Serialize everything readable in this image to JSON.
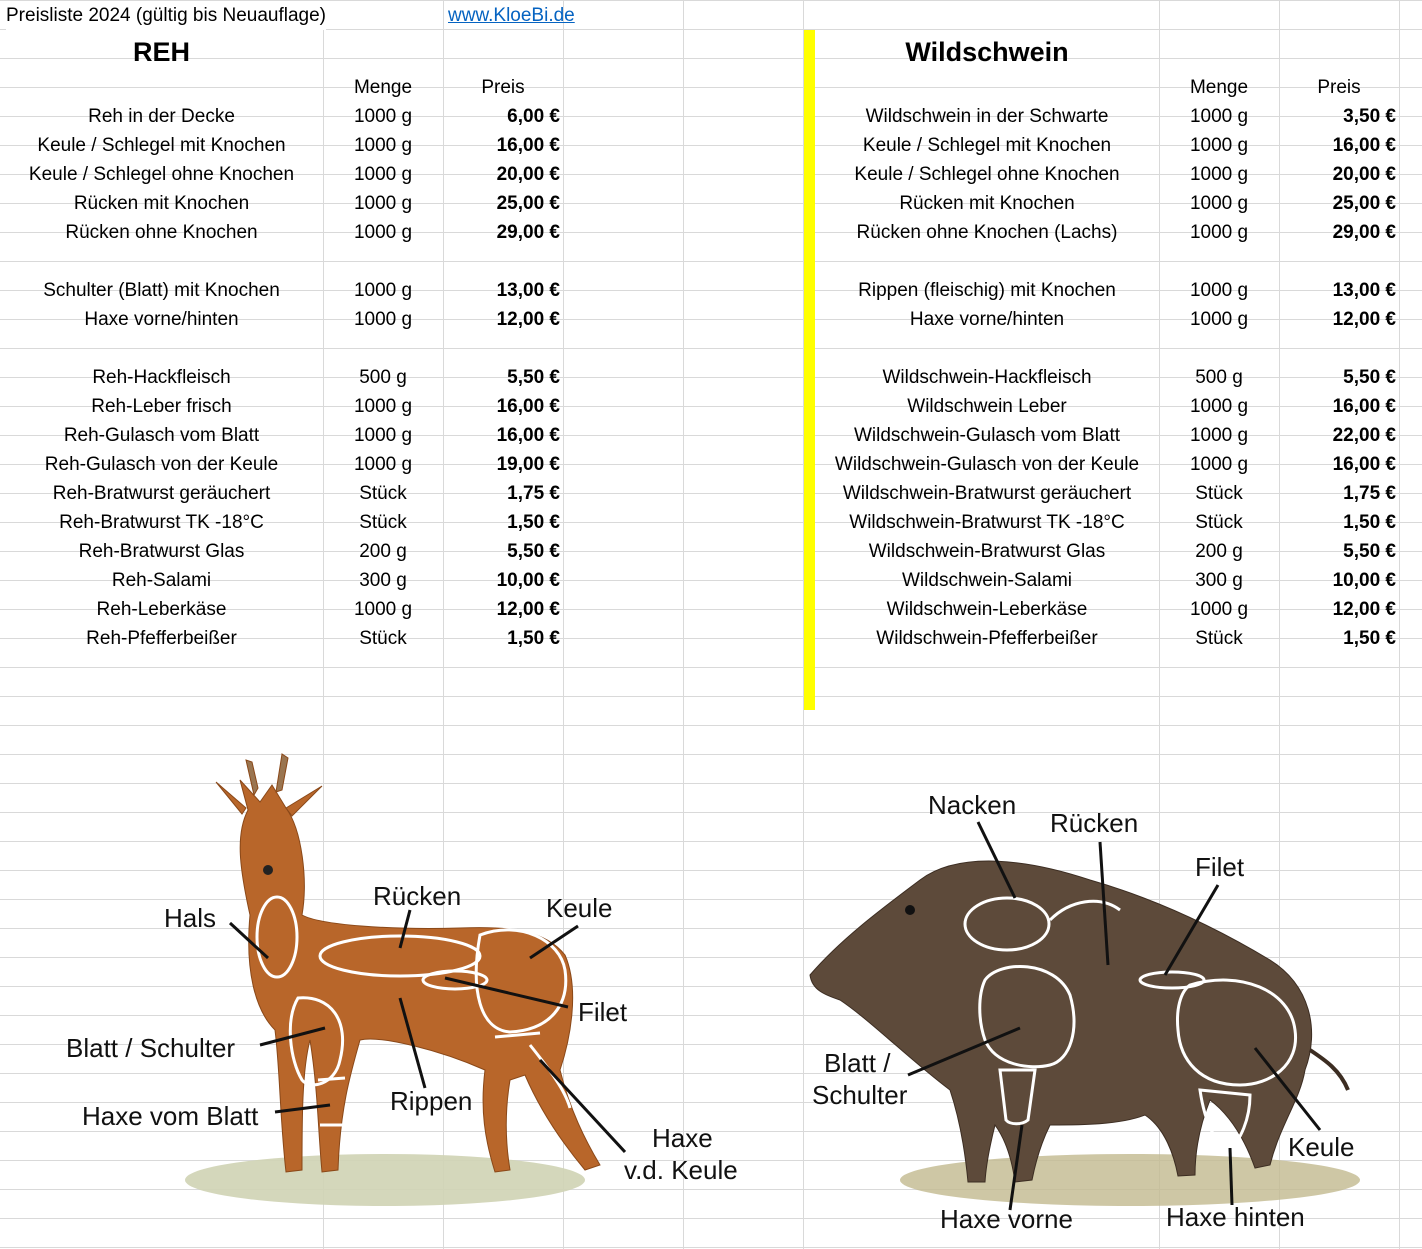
{
  "header": {
    "title": "Preisliste 2024 (gültig bis Neuauflage)",
    "link": "www.KloeBi.de"
  },
  "columns": {
    "menge": "Menge",
    "preis": "Preis"
  },
  "reh": {
    "title": "REH",
    "rows": [
      {
        "name": "Reh in der Decke",
        "qty": "1000 g",
        "price": "6,00 €"
      },
      {
        "name": "Keule / Schlegel mit Knochen",
        "qty": "1000 g",
        "price": "16,00 €"
      },
      {
        "name": "Keule / Schlegel ohne Knochen",
        "qty": "1000 g",
        "price": "20,00 €"
      },
      {
        "name": "Rücken mit Knochen",
        "qty": "1000 g",
        "price": "25,00 €"
      },
      {
        "name": "Rücken ohne Knochen",
        "qty": "1000 g",
        "price": "29,00 €"
      },
      {
        "name": "",
        "qty": "",
        "price": ""
      },
      {
        "name": "Schulter (Blatt) mit Knochen",
        "qty": "1000 g",
        "price": "13,00 €"
      },
      {
        "name": "Haxe vorne/hinten",
        "qty": "1000 g",
        "price": "12,00 €"
      },
      {
        "name": "",
        "qty": "",
        "price": ""
      },
      {
        "name": "Reh-Hackfleisch",
        "qty": "500 g",
        "price": "5,50 €"
      },
      {
        "name": "Reh-Leber frisch",
        "qty": "1000 g",
        "price": "16,00 €"
      },
      {
        "name": "Reh-Gulasch vom Blatt",
        "qty": "1000 g",
        "price": "16,00 €"
      },
      {
        "name": "Reh-Gulasch von der Keule",
        "qty": "1000 g",
        "price": "19,00 €"
      },
      {
        "name": "Reh-Bratwurst geräuchert",
        "qty": "Stück",
        "price": "1,75 €"
      },
      {
        "name": "Reh-Bratwurst TK -18°C",
        "qty": "Stück",
        "price": "1,50 €"
      },
      {
        "name": "Reh-Bratwurst Glas",
        "qty": "200 g",
        "price": "5,50 €"
      },
      {
        "name": "Reh-Salami",
        "qty": "300 g",
        "price": "10,00 €"
      },
      {
        "name": "Reh-Leberkäse",
        "qty": "1000 g",
        "price": "12,00 €"
      },
      {
        "name": "Reh-Pfefferbeißer",
        "qty": "Stück",
        "price": "1,50 €"
      }
    ]
  },
  "wildschwein": {
    "title": "Wildschwein",
    "rows": [
      {
        "name": "Wildschwein in der Schwarte",
        "qty": "1000 g",
        "price": "3,50 €"
      },
      {
        "name": "Keule / Schlegel mit Knochen",
        "qty": "1000 g",
        "price": "16,00 €"
      },
      {
        "name": "Keule / Schlegel ohne Knochen",
        "qty": "1000 g",
        "price": "20,00 €"
      },
      {
        "name": "Rücken mit Knochen",
        "qty": "1000 g",
        "price": "25,00 €"
      },
      {
        "name": "Rücken ohne Knochen (Lachs)",
        "qty": "1000 g",
        "price": "29,00 €"
      },
      {
        "name": "",
        "qty": "",
        "price": ""
      },
      {
        "name": "Rippen (fleischig) mit Knochen",
        "qty": "1000 g",
        "price": "13,00 €"
      },
      {
        "name": "Haxe vorne/hinten",
        "qty": "1000 g",
        "price": "12,00 €"
      },
      {
        "name": "",
        "qty": "",
        "price": ""
      },
      {
        "name": "Wildschwein-Hackfleisch",
        "qty": "500 g",
        "price": "5,50 €"
      },
      {
        "name": "Wildschwein Leber",
        "qty": "1000 g",
        "price": "16,00 €"
      },
      {
        "name": "Wildschwein-Gulasch vom Blatt",
        "qty": "1000 g",
        "price": "22,00 €"
      },
      {
        "name": "Wildschwein-Gulasch von der Keule",
        "qty": "1000 g",
        "price": "16,00 €"
      },
      {
        "name": "Wildschwein-Bratwurst geräuchert",
        "qty": "Stück",
        "price": "1,75 €"
      },
      {
        "name": "Wildschwein-Bratwurst TK -18°C",
        "qty": "Stück",
        "price": "1,50 €"
      },
      {
        "name": "Wildschwein-Bratwurst Glas",
        "qty": "200 g",
        "price": "5,50 €"
      },
      {
        "name": "Wildschwein-Salami",
        "qty": "300 g",
        "price": "10,00 €"
      },
      {
        "name": "Wildschwein-Leberkäse",
        "qty": "1000 g",
        "price": "12,00 €"
      },
      {
        "name": "Wildschwein-Pfefferbeißer",
        "qty": "Stück",
        "price": "1,50 €"
      }
    ]
  },
  "deer_diagram": {
    "labels": {
      "hals": "Hals",
      "ruecken": "Rücken",
      "keule": "Keule",
      "filet": "Filet",
      "blatt": "Blatt / Schulter",
      "haxe_blatt": "Haxe vom Blatt",
      "rippen": "Rippen",
      "haxe_keule_1": "Haxe",
      "haxe_keule_2": "v.d. Keule"
    }
  },
  "boar_diagram": {
    "labels": {
      "nacken": "Nacken",
      "ruecken": "Rücken",
      "filet": "Filet",
      "blatt_1": "Blatt /",
      "blatt_2": "Schulter",
      "keule": "Keule",
      "haxe_vorne": "Haxe vorne",
      "haxe_hinten": "Haxe hinten"
    }
  },
  "colors": {
    "divider": "#ffff00",
    "link": "#0563c1",
    "grid": "#d9d9d9"
  }
}
